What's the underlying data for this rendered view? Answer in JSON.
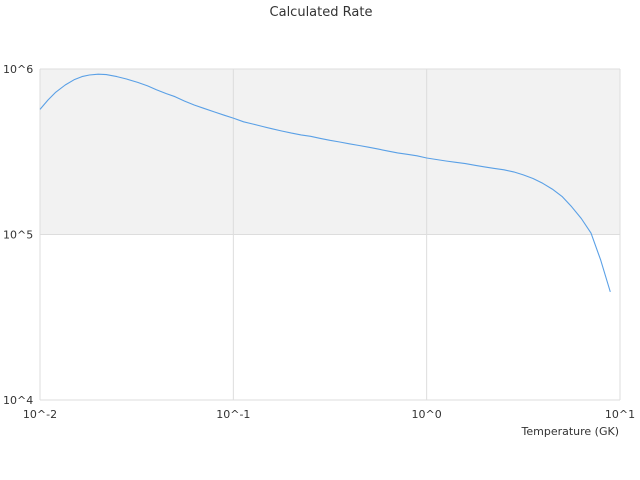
{
  "chart_data": {
    "type": "line",
    "title": "Calculated Rate",
    "xlabel": "Temperature (GK)",
    "ylabel": "",
    "x_scale": "log",
    "y_scale": "log",
    "xlim": [
      0.01,
      10
    ],
    "ylim": [
      10000,
      1000000
    ],
    "x_ticks": [
      {
        "value": 0.01,
        "label": "10^-2"
      },
      {
        "value": 0.1,
        "label": "10^-1"
      },
      {
        "value": 1,
        "label": "10^0"
      },
      {
        "value": 10,
        "label": "10^1"
      }
    ],
    "y_ticks": [
      {
        "value": 10000,
        "label": "10^4"
      },
      {
        "value": 100000,
        "label": "10^5"
      },
      {
        "value": 1000000,
        "label": "10^6"
      }
    ],
    "band_colors": [
      "#f2f2f2",
      "#ffffff"
    ],
    "line_color": "#5aa0e6",
    "grid": true,
    "legend": "none",
    "series": [
      {
        "x": [
          0.01,
          0.011,
          0.012,
          0.0135,
          0.015,
          0.0165,
          0.018,
          0.02,
          0.022,
          0.025,
          0.028,
          0.032,
          0.036,
          0.04,
          0.045,
          0.05,
          0.056,
          0.063,
          0.07,
          0.08,
          0.09,
          0.1,
          0.113,
          0.126,
          0.141,
          0.158,
          0.178,
          0.2,
          0.224,
          0.251,
          0.282,
          0.316,
          0.355,
          0.398,
          0.447,
          0.5,
          0.562,
          0.631,
          0.708,
          0.794,
          0.891,
          1.0,
          1.122,
          1.259,
          1.413,
          1.585,
          1.778,
          1.995,
          2.239,
          2.512,
          2.818,
          3.162,
          3.548,
          3.981,
          4.467,
          5.012,
          5.623,
          6.31,
          7.079,
          7.943,
          8.913
        ],
        "y": [
          570000,
          650000,
          720000,
          800000,
          860000,
          900000,
          920000,
          930000,
          925000,
          900000,
          870000,
          830000,
          790000,
          750000,
          710000,
          680000,
          640000,
          605000,
          580000,
          550000,
          525000,
          505000,
          480000,
          465000,
          450000,
          436000,
          422000,
          410000,
          400000,
          392000,
          381000,
          371000,
          362000,
          353000,
          345000,
          337000,
          328000,
          319000,
          311000,
          305000,
          299000,
          290000,
          284000,
          278000,
          273000,
          268000,
          262000,
          256000,
          251000,
          246000,
          239000,
          229000,
          218000,
          204000,
          188000,
          170000,
          147000,
          125000,
          102000,
          70000,
          45000
        ]
      }
    ]
  }
}
